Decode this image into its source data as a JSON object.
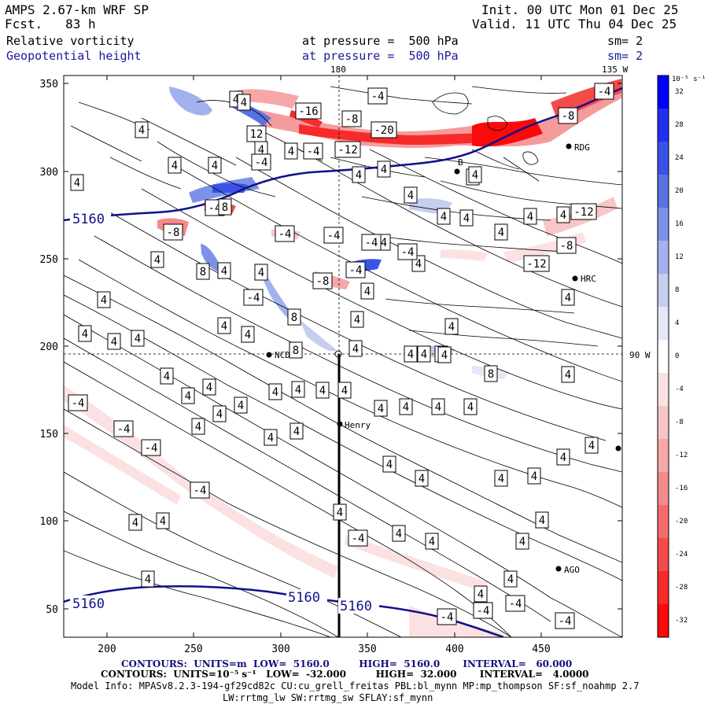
{
  "header": {
    "model": "AMPS 2.67-km WRF SP",
    "fcst_label": "Fcst.",
    "fcst_value": "83 h",
    "init": "Init. 00 UTC Mon 01 Dec 25",
    "valid": "Valid. 11 UTC Thu 04 Dec 25",
    "field1_name": "Relative vorticity",
    "field1_level": "at pressure =  500 hPa",
    "field1_sm": "sm= 2",
    "field2_name": "Geopotential height",
    "field2_level": "at pressure =  500 hPa",
    "field2_sm": "sm= 2"
  },
  "map": {
    "meridian_labels": [
      "180",
      "135 W"
    ],
    "parallel_label": "90 W",
    "x_ticks": [
      "200",
      "250",
      "300",
      "350",
      "400",
      "450"
    ],
    "y_ticks": [
      "350",
      "300",
      "250",
      "200",
      "150",
      "100",
      "50"
    ],
    "stations": [
      "RDG",
      "HRC",
      "NCD",
      "Henry",
      "AGO"
    ],
    "height_labels": [
      "5160",
      "5160",
      "5160",
      "5160"
    ],
    "vort_labels_pos": "4",
    "vort_labels_neg": [
      "-4",
      "-8",
      "-12",
      "-16",
      "-20"
    ],
    "vort_labels_pos_more": [
      "8",
      "12"
    ],
    "stray_label": "B"
  },
  "colorbar": {
    "unit": "10⁻⁵ s⁻¹",
    "values": [
      32,
      28,
      24,
      20,
      16,
      12,
      8,
      4,
      0,
      -4,
      -8,
      -12,
      -16,
      -20,
      -24,
      -28,
      -32
    ],
    "colors": [
      "#0000ff",
      "#2030ee",
      "#3a52e6",
      "#5872e2",
      "#7c92e8",
      "#a2b2ee",
      "#c4ceef",
      "#e3e8f6",
      "#ffffff",
      "#fbe1e1",
      "#f8c6c6",
      "#f6a7a7",
      "#f58a8a",
      "#f56b6b",
      "#f54a4a",
      "#f72a2a",
      "#fa0a0a"
    ]
  },
  "footer": {
    "line1": "CONTOURS:  UNITS=m  LOW=  5160.0         HIGH=  5160.0       INTERVAL=   60.000",
    "line2": "CONTOURS:  UNITS=10⁻⁵ s⁻¹   LOW=  -32.000         HIGH=  32.000       INTERVAL=   4.0000",
    "line3": "Model Info: MPASv8.2.3-194-gf29cd82c CU:cu_grell_freitas PBL:bl_mynn MP:mp_thompson SF:sf_noahmp 2.7",
    "line4": "LW:rrtmg_lw SW:rrtmg_sw SFLAY:sf_mynn"
  }
}
